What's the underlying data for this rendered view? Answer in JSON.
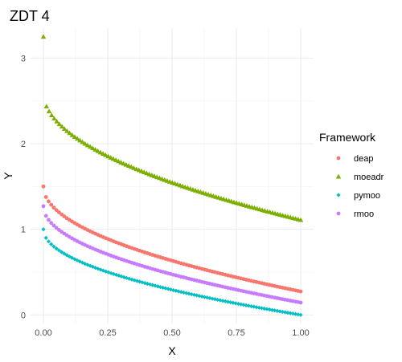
{
  "chart_data": {
    "type": "scatter",
    "title": "ZDT 4",
    "xlabel": "X",
    "ylabel": "Y",
    "xlim": [
      -0.05,
      1.05
    ],
    "ylim": [
      -0.1,
      3.35
    ],
    "x_ticks": [
      "0.00",
      "0.25",
      "0.50",
      "0.75",
      "1.00"
    ],
    "y_ticks": [
      "0",
      "1",
      "2",
      "3"
    ],
    "grid": true,
    "legend": {
      "title": "Framework",
      "placement": "right"
    },
    "series": [
      {
        "name": "deap",
        "color": "#F8766D",
        "shape": "circle",
        "curve": {
          "a": 1.5,
          "b": 1.226,
          "p": 0.5
        },
        "x_range": [
          0.0,
          1.0
        ],
        "n_points": 100
      },
      {
        "name": "moeadr",
        "color": "#7CAE00",
        "shape": "triangle",
        "curve": {
          "a": 2.6,
          "b": 1.49,
          "p": 0.5
        },
        "x_range": [
          0.012,
          1.0
        ],
        "n_points": 100,
        "extra_points": [
          {
            "x": 0.0,
            "y": 3.25
          }
        ]
      },
      {
        "name": "pymoo",
        "color": "#00BFC4",
        "shape": "diamond",
        "curve": {
          "a": 1.0,
          "b": 1.0,
          "p": 0.5
        },
        "x_range": [
          0.0,
          1.0
        ],
        "n_points": 100
      },
      {
        "name": "rmoo",
        "color": "#C77CFF",
        "shape": "circle",
        "curve": {
          "a": 1.27,
          "b": 1.126,
          "p": 0.5
        },
        "x_range": [
          0.0,
          1.0
        ],
        "n_points": 100
      }
    ]
  }
}
